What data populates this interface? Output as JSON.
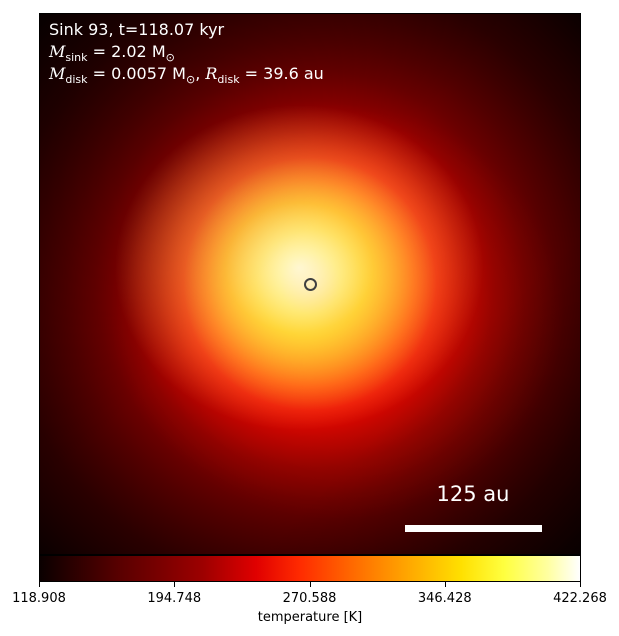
{
  "chart_data": {
    "type": "heatmap",
    "annotations": {
      "line1": "Sink 93, t=118.07 kyr",
      "m_sink": {
        "symbol": "M",
        "subscript": "sink",
        "text": " = 2.02 M",
        "unit_sub": "⊙"
      },
      "m_disk": {
        "symbol": "M",
        "subscript": "disk",
        "text": " = 0.0057 M",
        "unit_sub": "⊙"
      },
      "r_disk": {
        "symbol": "R",
        "subscript": "disk",
        "text": " = 39.6 au"
      }
    },
    "scale_bar_label": "125 au",
    "colorbar": {
      "label": "temperature [K]",
      "range": [
        118.908,
        422.268
      ],
      "ticks": [
        "118.908",
        "194.748",
        "270.588",
        "346.428",
        "422.268"
      ],
      "colormap": "hot"
    },
    "marker": {
      "name": "sink particle",
      "shape": "circle"
    }
  }
}
